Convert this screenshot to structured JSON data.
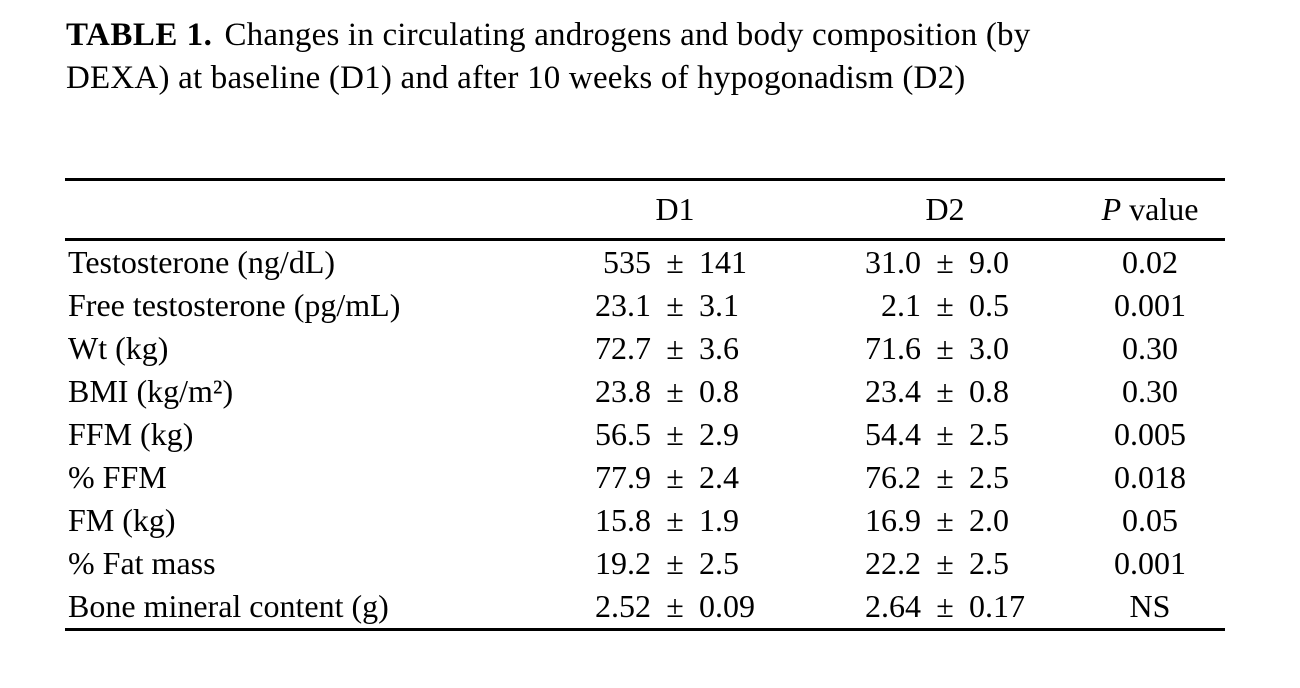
{
  "table": {
    "title_label": "TABLE 1.",
    "title_text": "Changes in circulating androgens and body composition (by DEXA) at baseline (D1) and after 10 weeks of hypogonadism (D2)",
    "pm": "±",
    "columns": {
      "label": "",
      "d1": "D1",
      "d2": "D2",
      "p_italic": "P",
      "p_rest": " value"
    },
    "rows": [
      {
        "label": "Testosterone (ng/dL)",
        "d1_mean": "535",
        "d1_sd": "141",
        "d2_mean": "31.0",
        "d2_sd": "9.0",
        "p": "0.02"
      },
      {
        "label": "Free testosterone (pg/mL)",
        "d1_mean": "23.1",
        "d1_sd": "3.1",
        "d2_mean": "2.1",
        "d2_sd": "0.5",
        "p": "0.001"
      },
      {
        "label": "Wt (kg)",
        "d1_mean": "72.7",
        "d1_sd": "3.6",
        "d2_mean": "71.6",
        "d2_sd": "3.0",
        "p": "0.30"
      },
      {
        "label": "BMI (kg/m²)",
        "d1_mean": "23.8",
        "d1_sd": "0.8",
        "d2_mean": "23.4",
        "d2_sd": "0.8",
        "p": "0.30"
      },
      {
        "label": "FFM (kg)",
        "d1_mean": "56.5",
        "d1_sd": "2.9",
        "d2_mean": "54.4",
        "d2_sd": "2.5",
        "p": "0.005"
      },
      {
        "label": "% FFM",
        "d1_mean": "77.9",
        "d1_sd": "2.4",
        "d2_mean": "76.2",
        "d2_sd": "2.5",
        "p": "0.018"
      },
      {
        "label": "FM (kg)",
        "d1_mean": "15.8",
        "d1_sd": "1.9",
        "d2_mean": "16.9",
        "d2_sd": "2.0",
        "p": "0.05"
      },
      {
        "label": "% Fat mass",
        "d1_mean": "19.2",
        "d1_sd": "2.5",
        "d2_mean": "22.2",
        "d2_sd": "2.5",
        "p": "0.001"
      },
      {
        "label": "Bone mineral content (g)",
        "d1_mean": "2.52",
        "d1_sd": "0.09",
        "d2_mean": "2.64",
        "d2_sd": "0.17",
        "p": "NS"
      }
    ]
  }
}
